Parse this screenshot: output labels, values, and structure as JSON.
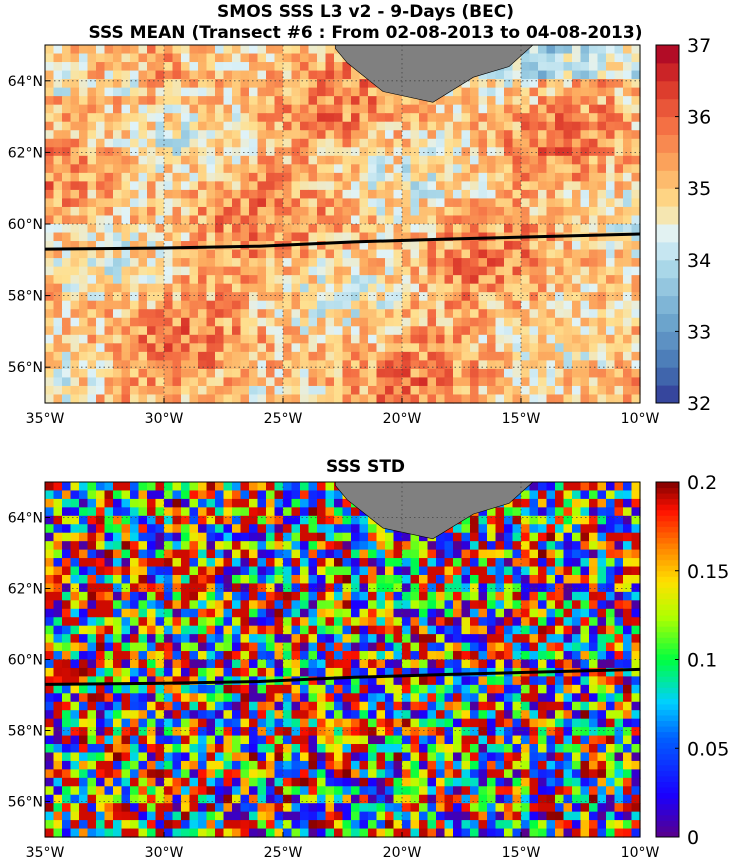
{
  "chart_data": [
    {
      "type": "heatmap",
      "title_line1": "SMOS SSS L3 v2 - 9-Days (BEC)",
      "title_line2": "SSS MEAN (Transect #6 : From 02-08-2013 to 04-08-2013)",
      "xlim": [
        -35,
        -10
      ],
      "ylim": [
        55,
        65
      ],
      "x_ticks": [
        -35,
        -30,
        -25,
        -20,
        -15,
        -10
      ],
      "x_tick_labels": [
        "35°W",
        "30°W",
        "25°W",
        "20°W",
        "15°W",
        "10°W"
      ],
      "y_ticks": [
        56,
        58,
        60,
        62,
        64
      ],
      "y_tick_labels": [
        "56°N",
        "58°N",
        "60°N",
        "62°N",
        "64°N"
      ],
      "colorbar": {
        "min": 32,
        "max": 37,
        "ticks": [
          32,
          33,
          34,
          35,
          36,
          37
        ],
        "tick_labels": [
          "32",
          "33",
          "34",
          "35",
          "36",
          "37"
        ],
        "colormap": "reversed-diverging (blue-white-red)"
      },
      "grid": true,
      "land_color": "#808080",
      "transect": {
        "color": "#000000",
        "lon": [
          -35,
          -30,
          -26,
          -22,
          -18,
          -14,
          -10
        ],
        "lat": [
          59.3,
          59.33,
          59.38,
          59.5,
          59.58,
          59.65,
          59.72
        ]
      },
      "field_range_estimate": [
        33.2,
        36.6
      ],
      "field_typical": 35.2
    },
    {
      "type": "heatmap",
      "title": "SSS STD",
      "xlim": [
        -35,
        -10
      ],
      "ylim": [
        55,
        65
      ],
      "x_ticks": [
        -35,
        -30,
        -25,
        -20,
        -15,
        -10
      ],
      "x_tick_labels": [
        "35°W",
        "30°W",
        "25°W",
        "20°W",
        "15°W",
        "10°W"
      ],
      "y_ticks": [
        56,
        58,
        60,
        62,
        64
      ],
      "y_tick_labels": [
        "56°N",
        "58°N",
        "60°N",
        "62°N",
        "64°N"
      ],
      "colorbar": {
        "min": 0,
        "max": 0.2,
        "ticks": [
          0,
          0.05,
          0.1,
          0.15,
          0.2
        ],
        "tick_labels": [
          "0",
          "0.05",
          "0.1",
          "0.15",
          "0.2"
        ],
        "colormap": "jet"
      },
      "grid": true,
      "land_color": "#808080",
      "transect": {
        "color": "#000000",
        "lon": [
          -35,
          -30,
          -26,
          -22,
          -18,
          -14,
          -10
        ],
        "lat": [
          59.3,
          59.33,
          59.38,
          59.5,
          59.58,
          59.65,
          59.72
        ]
      },
      "field_range_estimate": [
        0,
        0.2
      ]
    }
  ]
}
